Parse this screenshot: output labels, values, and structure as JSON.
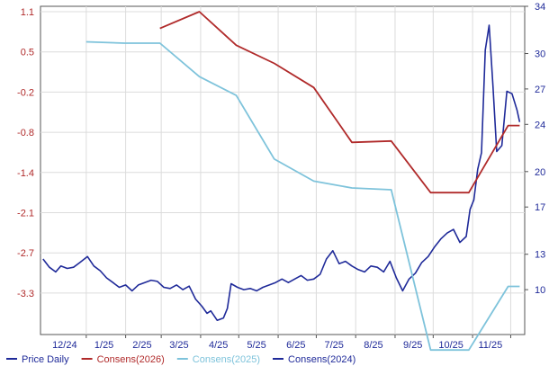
{
  "chart_data": {
    "type": "line",
    "title": "",
    "xlabel": "",
    "ylabel": "",
    "x_ticks": [
      "12/24",
      "1/25",
      "2/25",
      "3/25",
      "4/25",
      "5/25",
      "6/25",
      "7/25",
      "8/25",
      "9/25",
      "10/25",
      "11/25"
    ],
    "left_axis": {
      "ticks": [
        "1.1",
        "0.5",
        "-0.2",
        "-0.8",
        "-1.4",
        "-2.1",
        "-2.7",
        "-3.3"
      ],
      "range": [
        -4.25,
        1.1
      ],
      "color": "#b02a2a"
    },
    "right_axis": {
      "ticks": [
        "34",
        "30",
        "27",
        "24",
        "20",
        "17",
        "13",
        "10"
      ],
      "range": [
        6.2,
        34
      ],
      "color": "#1f2a99"
    },
    "grid": true,
    "legend_position": "bottom",
    "x_range": [
      "2024-11-26",
      "2025-12-12"
    ],
    "series": [
      {
        "name": "Price Daily",
        "axis": "right",
        "color": "#1f2a99",
        "x": [
          "2024-11-28",
          "2024-12-03",
          "2024-12-08",
          "2024-12-12",
          "2024-12-17",
          "2024-12-22",
          "2024-12-27",
          "2025-01-02",
          "2025-01-07",
          "2025-01-12",
          "2025-01-17",
          "2025-01-22",
          "2025-01-27",
          "2025-02-01",
          "2025-02-06",
          "2025-02-11",
          "2025-02-16",
          "2025-02-21",
          "2025-02-26",
          "2025-03-03",
          "2025-03-08",
          "2025-03-13",
          "2025-03-18",
          "2025-03-23",
          "2025-03-28",
          "2025-04-02",
          "2025-04-06",
          "2025-04-09",
          "2025-04-14",
          "2025-04-19",
          "2025-04-22",
          "2025-04-25",
          "2025-04-30",
          "2025-05-05",
          "2025-05-10",
          "2025-05-15",
          "2025-05-20",
          "2025-05-25",
          "2025-05-30",
          "2025-06-04",
          "2025-06-09",
          "2025-06-14",
          "2025-06-19",
          "2025-06-24",
          "2025-06-29",
          "2025-07-04",
          "2025-07-09",
          "2025-07-14",
          "2025-07-19",
          "2025-07-24",
          "2025-07-29",
          "2025-08-03",
          "2025-08-08",
          "2025-08-13",
          "2025-08-18",
          "2025-08-23",
          "2025-08-28",
          "2025-09-02",
          "2025-09-07",
          "2025-09-12",
          "2025-09-17",
          "2025-09-22",
          "2025-09-27",
          "2025-10-02",
          "2025-10-07",
          "2025-10-12",
          "2025-10-17",
          "2025-10-22",
          "2025-10-27",
          "2025-10-30",
          "2025-11-02",
          "2025-11-05",
          "2025-11-08",
          "2025-11-11",
          "2025-11-14",
          "2025-11-17",
          "2025-11-20",
          "2025-11-24",
          "2025-11-28",
          "2025-12-02",
          "2025-12-06",
          "2025-12-08"
        ],
        "values": [
          12.6,
          11.9,
          11.5,
          12.0,
          11.8,
          11.9,
          12.3,
          12.8,
          12.0,
          11.6,
          11.0,
          10.6,
          10.2,
          10.4,
          9.9,
          10.4,
          10.6,
          10.8,
          10.7,
          10.2,
          10.1,
          10.4,
          10.0,
          10.3,
          9.2,
          8.6,
          8.0,
          8.2,
          7.4,
          7.6,
          8.4,
          10.5,
          10.2,
          10.0,
          10.1,
          9.9,
          10.2,
          10.4,
          10.6,
          10.9,
          10.6,
          10.9,
          11.2,
          10.8,
          10.9,
          11.3,
          12.6,
          13.3,
          12.2,
          12.4,
          12.0,
          11.7,
          11.5,
          12.0,
          11.9,
          11.5,
          12.4,
          11.0,
          9.9,
          10.9,
          11.4,
          12.3,
          12.8,
          13.6,
          14.3,
          14.8,
          15.1,
          14.0,
          14.5,
          16.8,
          17.6,
          20.2,
          21.6,
          30.3,
          32.4,
          27.3,
          21.7,
          22.2,
          26.8,
          26.6,
          25.2,
          24.2
        ]
      },
      {
        "name": "Consens(2026)",
        "axis": "left",
        "color": "#b02a2a",
        "x": [
          "2025-02-28",
          "2025-03-31",
          "2025-04-29",
          "2025-05-29",
          "2025-06-29",
          "2025-07-29",
          "2025-08-29",
          "2025-09-29",
          "2025-10-29",
          "2025-11-29",
          "2025-12-08"
        ],
        "values": [
          0.85,
          1.1,
          0.6,
          0.3,
          -0.12,
          -0.95,
          -0.93,
          -1.75,
          -1.75,
          -0.7,
          -0.7
        ]
      },
      {
        "name": "Consens(2025)",
        "axis": "left",
        "color": "#7ec3db",
        "x": [
          "2025-01-01",
          "2025-01-31",
          "2025-02-28",
          "2025-03-31",
          "2025-04-29",
          "2025-05-29",
          "2025-06-29",
          "2025-07-29",
          "2025-08-29",
          "2025-09-29",
          "2025-10-29",
          "2025-11-29",
          "2025-12-08"
        ],
        "values": [
          0.65,
          0.63,
          0.63,
          0.07,
          -0.25,
          -1.2,
          -1.55,
          -1.67,
          -1.7,
          -4.15,
          -4.15,
          -3.2,
          -3.2
        ]
      }
    ],
    "legend": [
      {
        "label": "Price Daily",
        "color": "#1f2a99"
      },
      {
        "label": "Consens(2026)",
        "color": "#b02a2a"
      },
      {
        "label": "Consens(2025)",
        "color": "#7ec3db"
      },
      {
        "label": "Consens(2024)",
        "color": "#1f2a99"
      }
    ]
  }
}
